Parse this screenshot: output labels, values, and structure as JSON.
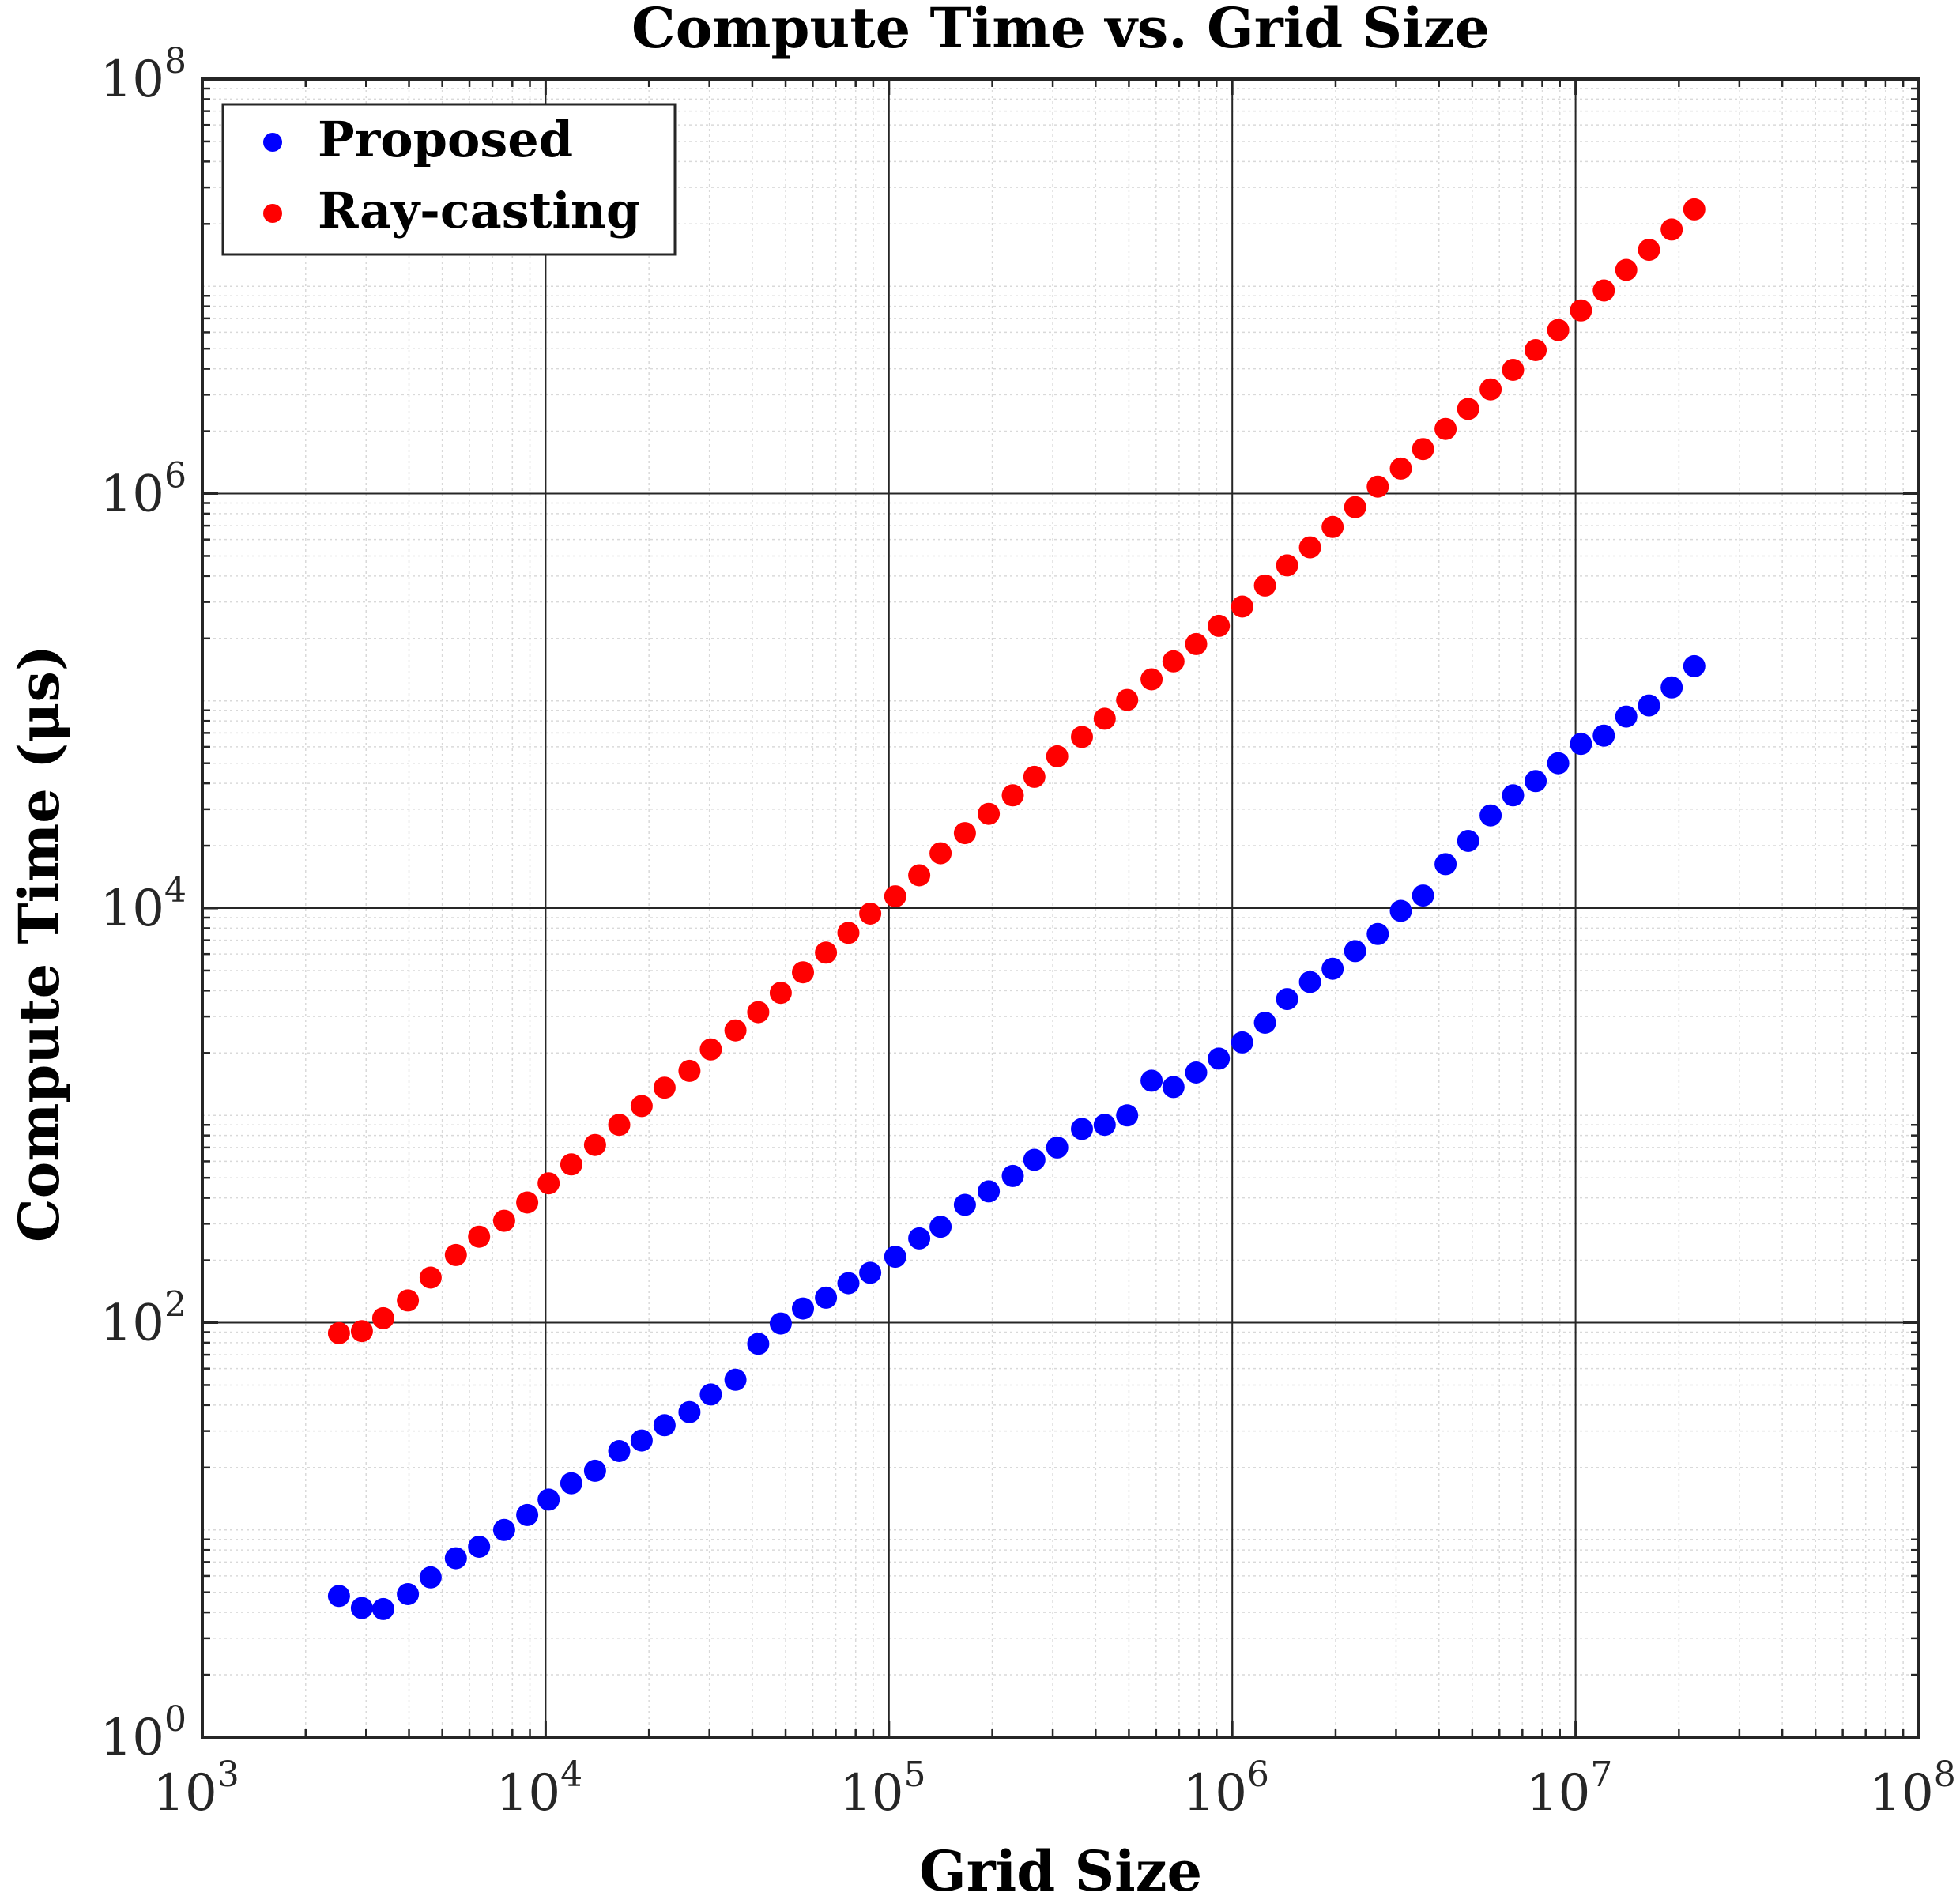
{
  "chart_data": {
    "type": "scatter",
    "title": "Compute Time vs. Grid Size",
    "xlabel": "Grid Size",
    "ylabel": "Compute Time (μs)",
    "x_scale": "log",
    "y_scale": "log",
    "xlim": [
      1000,
      100000000
    ],
    "ylim": [
      1,
      100000000
    ],
    "x_ticks": [
      {
        "base": "10",
        "exp": "3",
        "value": 1000
      },
      {
        "base": "10",
        "exp": "4",
        "value": 10000
      },
      {
        "base": "10",
        "exp": "5",
        "value": 100000
      },
      {
        "base": "10",
        "exp": "6",
        "value": 1000000
      },
      {
        "base": "10",
        "exp": "7",
        "value": 10000000
      },
      {
        "base": "10",
        "exp": "8",
        "value": 100000000
      }
    ],
    "y_ticks": [
      {
        "base": "10",
        "exp": "0",
        "value": 1
      },
      {
        "base": "10",
        "exp": "2",
        "value": 100
      },
      {
        "base": "10",
        "exp": "4",
        "value": 10000
      },
      {
        "base": "10",
        "exp": "6",
        "value": 1000000
      },
      {
        "base": "10",
        "exp": "8",
        "value": 100000000
      }
    ],
    "grid": true,
    "minor_grid": true,
    "legend_position": "top-left",
    "series": [
      {
        "name": "Proposed",
        "color": "#0000ff",
        "points": [
          [
            2500,
            4.8
          ],
          [
            2916,
            4.2
          ],
          [
            3364,
            4.15
          ],
          [
            3969,
            4.9
          ],
          [
            4624,
            5.9
          ],
          [
            5476,
            7.3
          ],
          [
            6400,
            8.3
          ],
          [
            7569,
            10
          ],
          [
            8836,
            11.8
          ],
          [
            10201,
            14
          ],
          [
            11881,
            16.8
          ],
          [
            13924,
            19.3
          ],
          [
            16384,
            24
          ],
          [
            19044,
            27
          ],
          [
            22201,
            32
          ],
          [
            26244,
            37
          ],
          [
            30276,
            45
          ],
          [
            35721,
            53
          ],
          [
            41616,
            79
          ],
          [
            48400,
            99
          ],
          [
            56169,
            117
          ],
          [
            65536,
            132
          ],
          [
            76176,
            155
          ],
          [
            88209,
            174
          ],
          [
            104329,
            208
          ],
          [
            122500,
            255
          ],
          [
            141376,
            290
          ],
          [
            166464,
            370
          ],
          [
            195364,
            430
          ],
          [
            229441,
            510
          ],
          [
            265225,
            610
          ],
          [
            309136,
            700
          ],
          [
            364816,
            860
          ],
          [
            425104,
            900
          ],
          [
            494209,
            1000
          ],
          [
            582169,
            1470
          ],
          [
            674041,
            1370
          ],
          [
            784996,
            1610
          ],
          [
            913936,
            1880
          ],
          [
            1069156,
            2250
          ],
          [
            1245456,
            2800
          ],
          [
            1444804,
            3640
          ],
          [
            1684804,
            4400
          ],
          [
            1960000,
            5100
          ],
          [
            2280100,
            6200
          ],
          [
            2653641,
            7500
          ],
          [
            3097600,
            9700
          ],
          [
            3594816,
            11500
          ],
          [
            4182025,
            16300
          ],
          [
            4866436,
            21100
          ],
          [
            5654884,
            28000
          ],
          [
            6574096,
            35000
          ],
          [
            7650756,
            41000
          ],
          [
            8898289,
            50000
          ],
          [
            10368400,
            62000
          ],
          [
            12082576,
            68000
          ],
          [
            14047876,
            84000
          ],
          [
            16362025,
            95000
          ],
          [
            19051200,
            116000
          ],
          [
            22173529,
            147000
          ]
        ]
      },
      {
        "name": "Ray-casting",
        "color": "#ff0000",
        "points": [
          [
            2500,
            89
          ],
          [
            2916,
            91
          ],
          [
            3364,
            105
          ],
          [
            3969,
            128
          ],
          [
            4624,
            165
          ],
          [
            5476,
            212
          ],
          [
            6400,
            260
          ],
          [
            7569,
            310
          ],
          [
            8836,
            380
          ],
          [
            10201,
            470
          ],
          [
            11881,
            580
          ],
          [
            13924,
            720
          ],
          [
            16384,
            900
          ],
          [
            19044,
            1110
          ],
          [
            22201,
            1360
          ],
          [
            26244,
            1640
          ],
          [
            30276,
            2080
          ],
          [
            35721,
            2570
          ],
          [
            41616,
            3150
          ],
          [
            48400,
            3900
          ],
          [
            56169,
            4900
          ],
          [
            65536,
            6100
          ],
          [
            76176,
            7600
          ],
          [
            88209,
            9400
          ],
          [
            104329,
            11400
          ],
          [
            122500,
            14400
          ],
          [
            141376,
            18400
          ],
          [
            166464,
            23000
          ],
          [
            195364,
            28500
          ],
          [
            229441,
            35000
          ],
          [
            265225,
            43000
          ],
          [
            309136,
            54000
          ],
          [
            364816,
            67000
          ],
          [
            425104,
            82000
          ],
          [
            494209,
            101000
          ],
          [
            582169,
            127000
          ],
          [
            674041,
            155000
          ],
          [
            784996,
            188000
          ],
          [
            913936,
            230000
          ],
          [
            1069156,
            285000
          ],
          [
            1245456,
            360000
          ],
          [
            1444804,
            450000
          ],
          [
            1684804,
            550000
          ],
          [
            1960000,
            690000
          ],
          [
            2280100,
            860000
          ],
          [
            2653641,
            1080000
          ],
          [
            3097600,
            1320000
          ],
          [
            3594816,
            1640000
          ],
          [
            4182025,
            2050000
          ],
          [
            4866436,
            2560000
          ],
          [
            5654884,
            3180000
          ],
          [
            6574096,
            3950000
          ],
          [
            7650756,
            4920000
          ],
          [
            8898289,
            6150000
          ],
          [
            10368400,
            7650000
          ],
          [
            12082576,
            9550000
          ],
          [
            14047876,
            12000000
          ],
          [
            16362025,
            15000000
          ],
          [
            19051200,
            18800000
          ],
          [
            22173529,
            23500000
          ]
        ]
      }
    ]
  }
}
